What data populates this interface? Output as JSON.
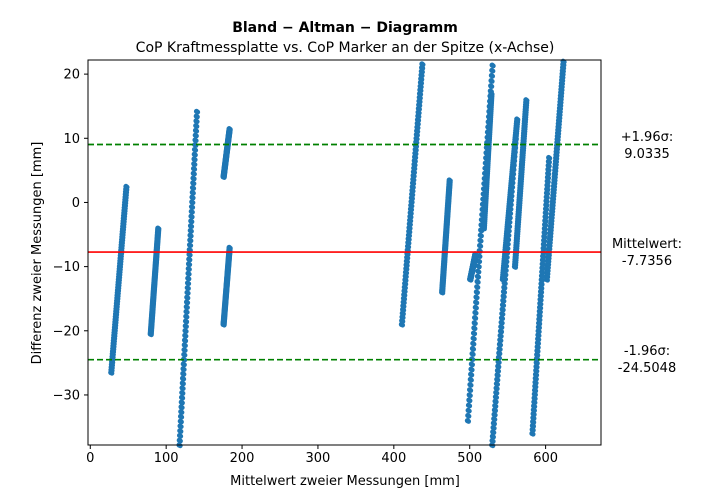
{
  "chart_data": {
    "type": "scatter",
    "title": "Bland − Altman − Diagramm",
    "subtitle": "CoP Kraftmessplatte vs. CoP Marker an der Spitze (x-Achse)",
    "xlabel": "Mittelwert zweier Messungen [mm]",
    "ylabel": "Differenz zweier Messungen [mm]",
    "xlim": [
      -3,
      673
    ],
    "ylim": [
      -37.8,
      22.2
    ],
    "x_ticks": [
      0,
      100,
      200,
      300,
      400,
      500,
      600
    ],
    "y_ticks": [
      -30,
      -20,
      -10,
      0,
      10,
      20
    ],
    "grid": false,
    "marker_color": "#1f77b4",
    "mean_line_color": "#ff0000",
    "limit_line_color": "#008000",
    "mean": -7.7356,
    "upper_limit": 9.0335,
    "lower_limit": -24.5048,
    "annotations": {
      "upper": [
        "+1.96σ:",
        "9.0335"
      ],
      "mean": [
        "Mittelwert:",
        "-7.7356"
      ],
      "lower": [
        "-1.96σ:",
        "-24.5048"
      ]
    },
    "point_segments": [
      {
        "x": [
          27,
          47
        ],
        "y": [
          -26.5,
          2.5
        ]
      },
      {
        "x": [
          79,
          89
        ],
        "y": [
          -20.5,
          -4.0
        ]
      },
      {
        "x": [
          117,
          140
        ],
        "y": [
          -37.8,
          14.2
        ]
      },
      {
        "x": [
          175,
          183
        ],
        "y": [
          -19.0,
          -7.0
        ]
      },
      {
        "x": [
          175,
          183
        ],
        "y": [
          4.0,
          11.5
        ]
      },
      {
        "x": [
          410,
          437
        ],
        "y": [
          -19.0,
          21.6
        ]
      },
      {
        "x": [
          463,
          473
        ],
        "y": [
          -14.0,
          3.5
        ]
      },
      {
        "x": [
          497,
          530
        ],
        "y": [
          -34.0,
          22.2
        ]
      },
      {
        "x": [
          500,
          507
        ],
        "y": [
          -12.0,
          -8.0
        ]
      },
      {
        "x": [
          518,
          528
        ],
        "y": [
          -4.0,
          17.0
        ]
      },
      {
        "x": [
          529,
          560
        ],
        "y": [
          -37.8,
          10.0
        ]
      },
      {
        "x": [
          543,
          562
        ],
        "y": [
          -12.0,
          13.0
        ]
      },
      {
        "x": [
          559,
          574
        ],
        "y": [
          -10.0,
          16.0
        ]
      },
      {
        "x": [
          582,
          604
        ],
        "y": [
          -36.0,
          7.0
        ]
      },
      {
        "x": [
          601,
          623
        ],
        "y": [
          -12.0,
          22.0
        ]
      }
    ]
  }
}
